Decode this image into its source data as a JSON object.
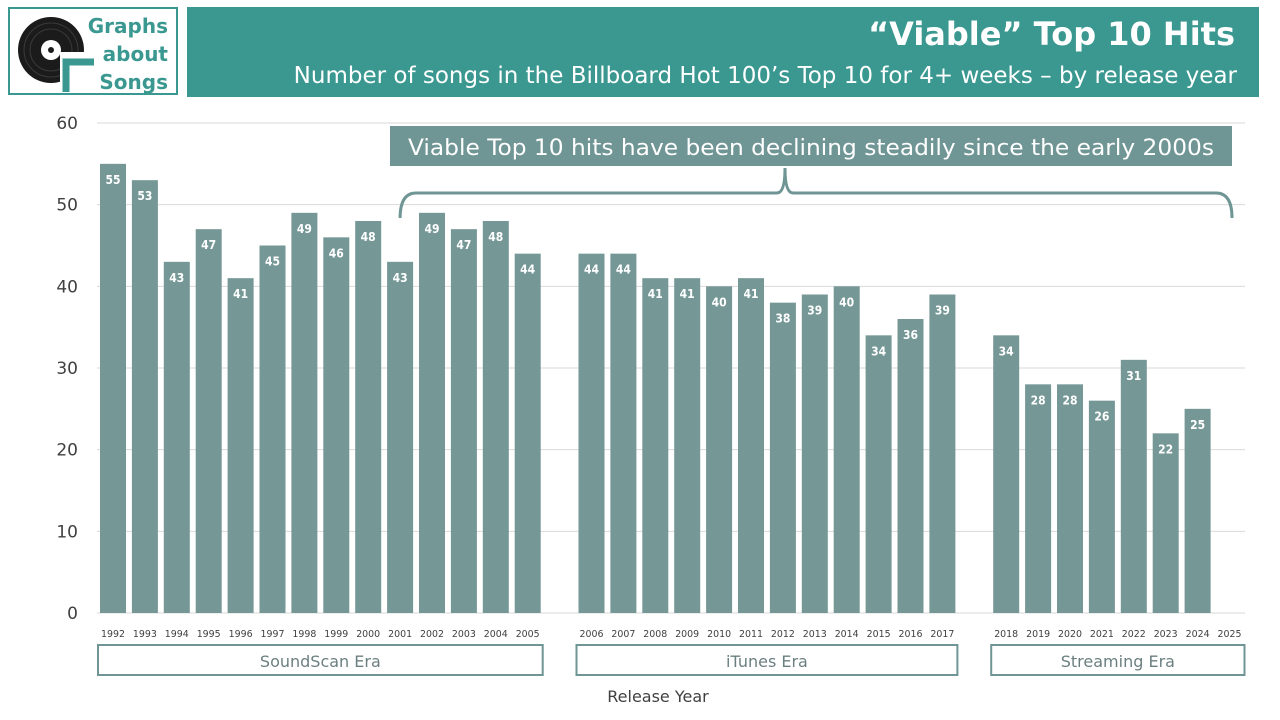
{
  "logo": {
    "lines": [
      "Graphs",
      "about",
      "Songs"
    ],
    "icon": "vinyl-record-icon"
  },
  "header": {
    "title": "“Viable” Top 10 Hits",
    "subtitle": "Number of songs in the Billboard Hot 100’s Top 10 for 4+ weeks – by release year"
  },
  "chart_data": {
    "type": "bar",
    "xlabel": "Release Year",
    "ylabel": "",
    "ylim": [
      0,
      60
    ],
    "yticks": [
      0,
      10,
      20,
      30,
      40,
      50,
      60
    ],
    "grid": true,
    "categories": [
      "1992",
      "1993",
      "1994",
      "1995",
      "1996",
      "1997",
      "1998",
      "1999",
      "2000",
      "2001",
      "2002",
      "2003",
      "2004",
      "2005",
      "2006",
      "2007",
      "2008",
      "2009",
      "2010",
      "2011",
      "2012",
      "2013",
      "2014",
      "2015",
      "2016",
      "2017",
      "2018",
      "2019",
      "2020",
      "2021",
      "2022",
      "2023",
      "2024",
      "2025"
    ],
    "values": [
      55,
      53,
      43,
      47,
      41,
      45,
      49,
      46,
      48,
      43,
      49,
      47,
      48,
      44,
      44,
      44,
      41,
      41,
      40,
      41,
      38,
      39,
      40,
      34,
      36,
      39,
      34,
      28,
      28,
      26,
      31,
      22,
      25,
      null
    ],
    "eras": [
      {
        "label": "SoundScan Era",
        "first": "1992",
        "last": "2005"
      },
      {
        "label": "iTunes Era",
        "first": "2006",
        "last": "2017"
      },
      {
        "label": "Streaming Era",
        "first": "2018",
        "last": "2025"
      }
    ],
    "annotation": "Viable Top 10 hits have been declining steadily since the early 2000s",
    "colors": {
      "bar": "#759796",
      "bar_label": "#ffffff",
      "accent": "#3a9891",
      "callout": "#6f9595",
      "grid": "#d9d9d9",
      "axis_text": "#404040"
    }
  }
}
